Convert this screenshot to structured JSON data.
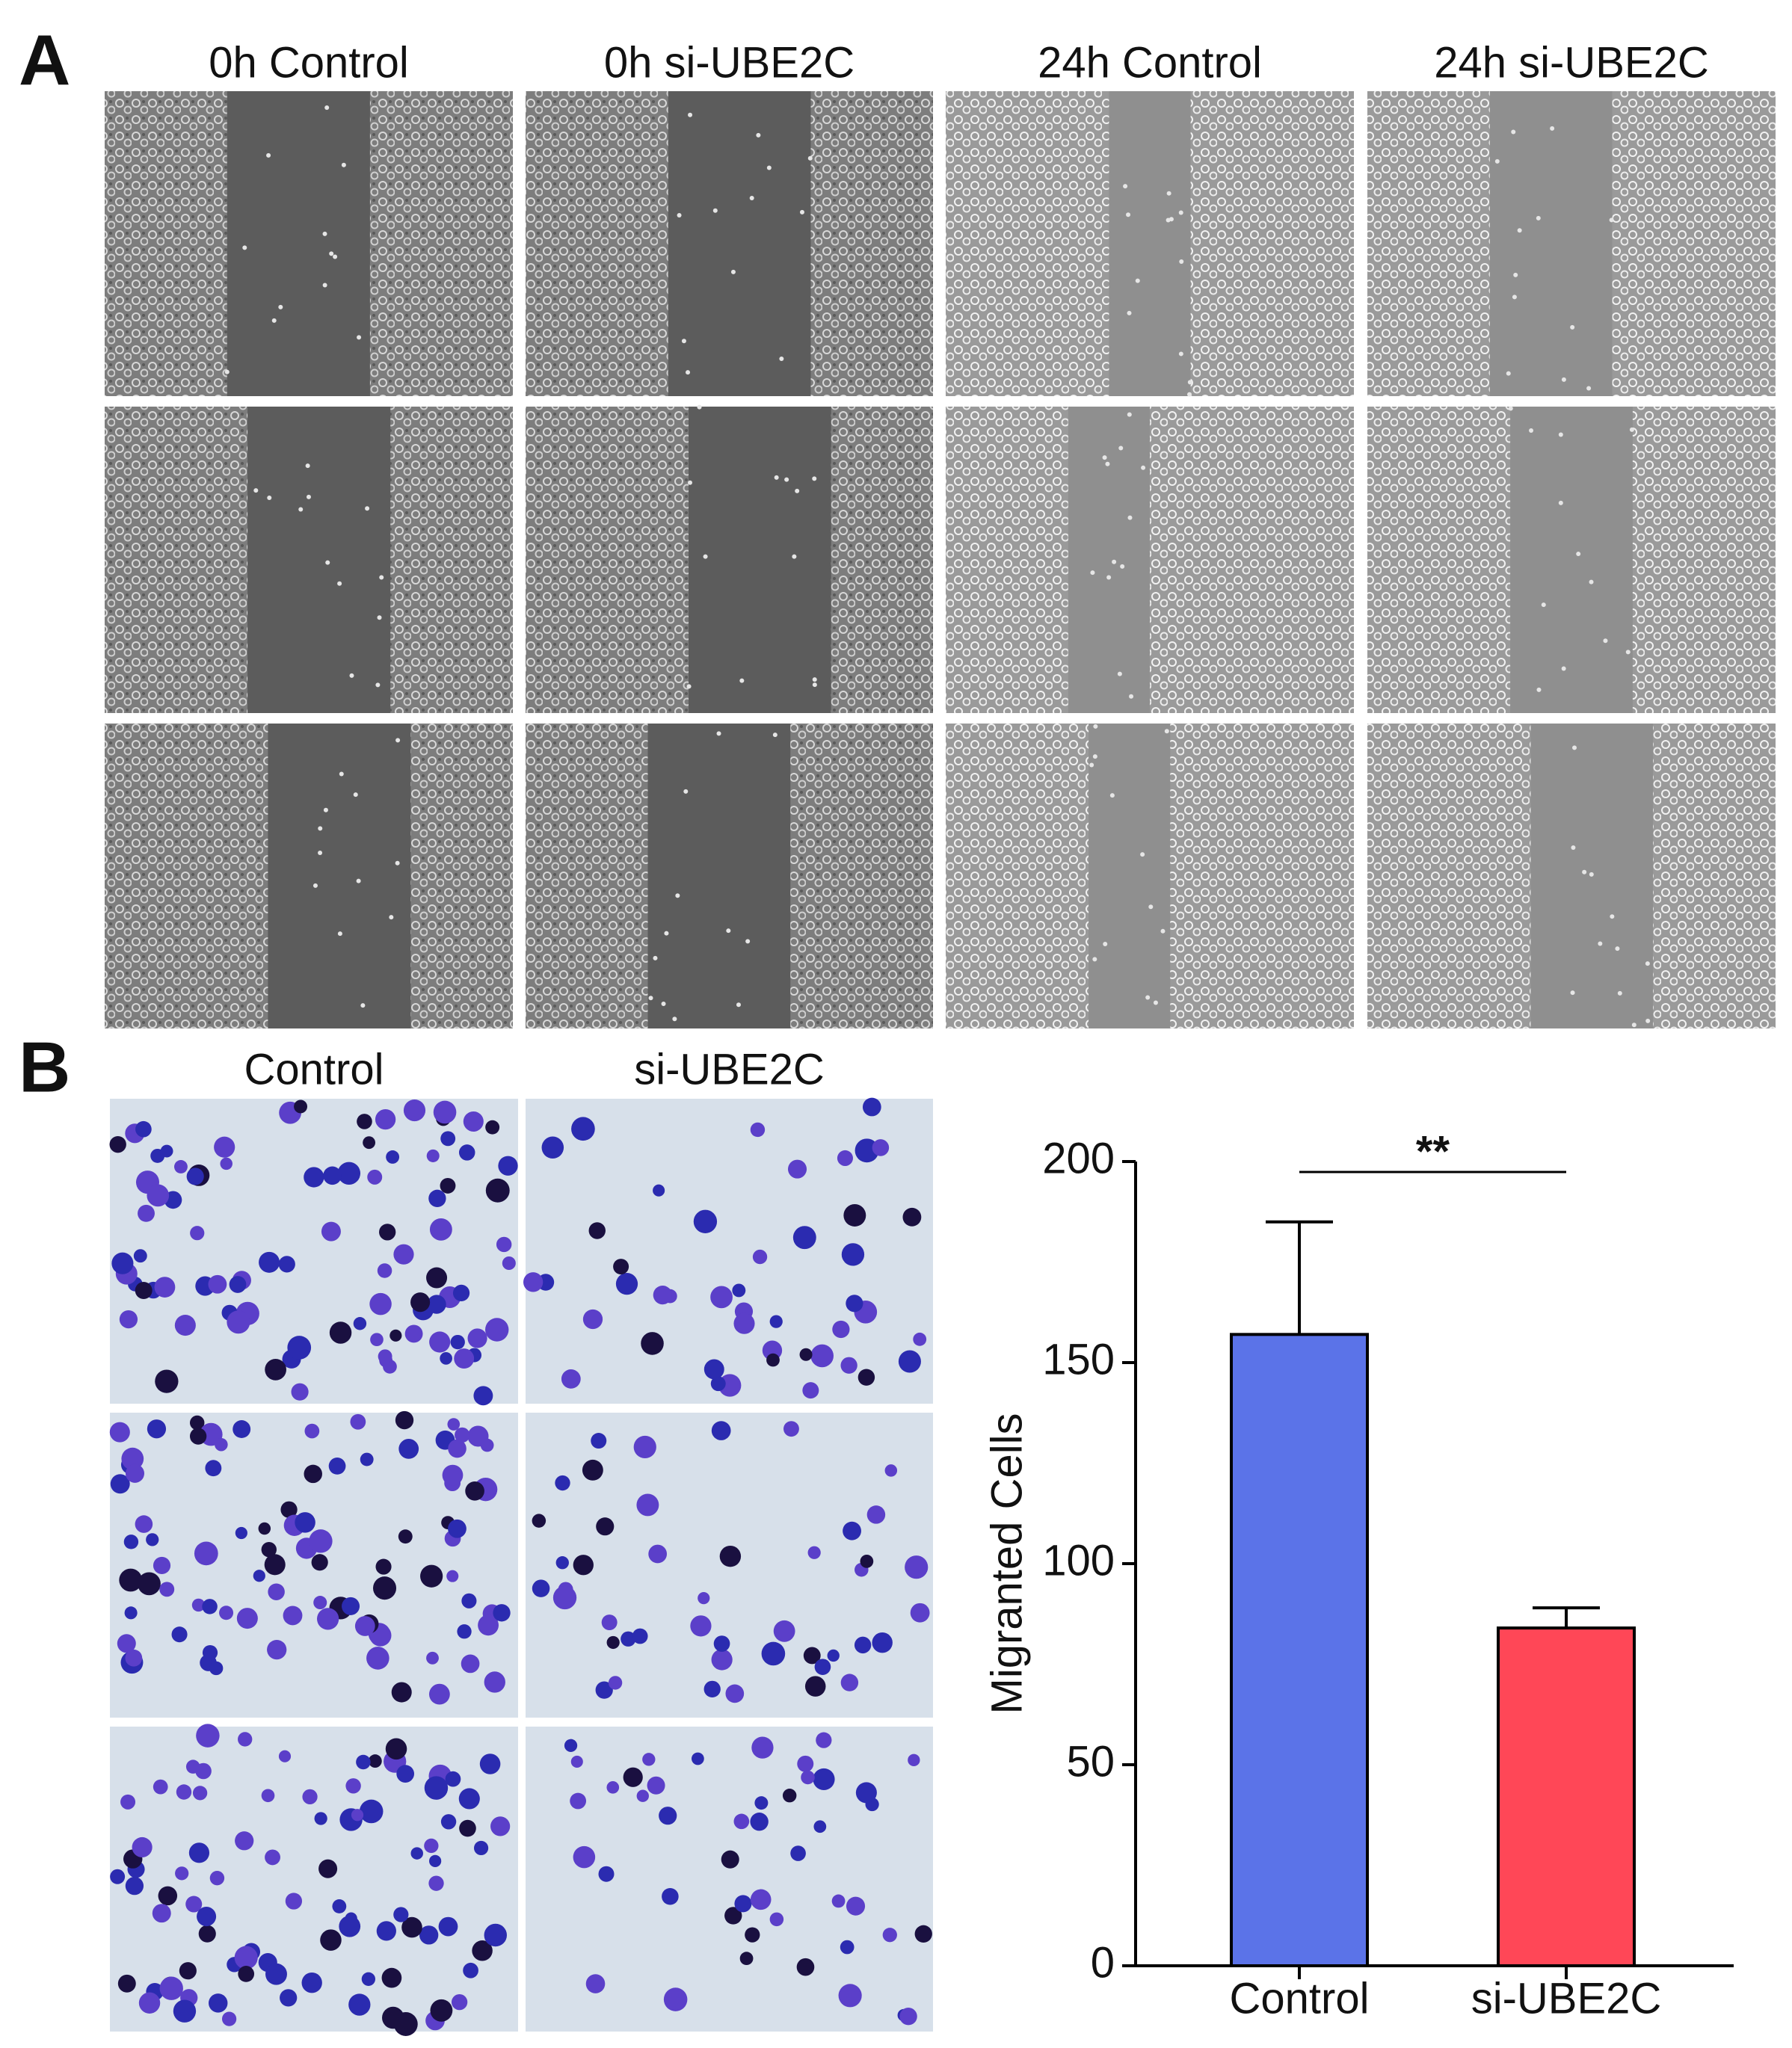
{
  "panel_a": {
    "label": "A",
    "columns": [
      "0h Control",
      "0h si-UBE2C",
      "24h Control",
      "24h si-UBE2C"
    ]
  },
  "panel_b": {
    "label": "B",
    "columns": [
      "Control",
      "si-UBE2C"
    ]
  },
  "chart_data": {
    "type": "bar",
    "ylabel": "Migranted Cells",
    "categories": [
      "Control",
      "si-UBE2C"
    ],
    "values": [
      157,
      84
    ],
    "errors": [
      28,
      5
    ],
    "colors": [
      "#5b73e8",
      "#ff4757"
    ],
    "ylim": [
      0,
      200
    ],
    "yticks": [
      0,
      50,
      100,
      150,
      200
    ],
    "annotation": "**"
  }
}
